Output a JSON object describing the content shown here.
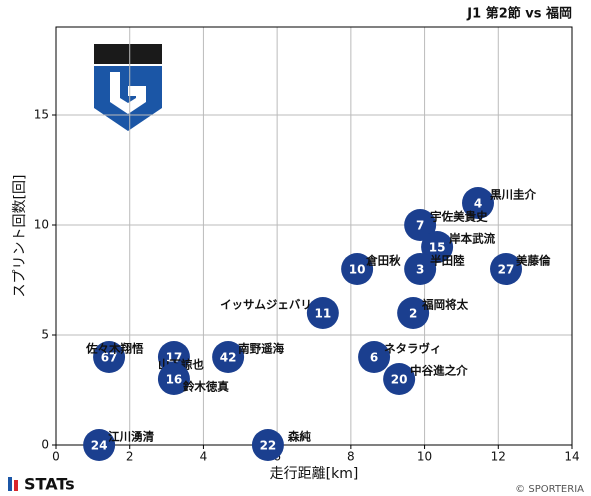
{
  "chart_data": {
    "type": "scatter",
    "title": "J1 第2節 vs 福岡",
    "xlabel": "走行距離[km]",
    "ylabel": "スプリント回数[回]",
    "color": "#1b3f8f",
    "x": [
      11.45,
      9.88,
      10.34,
      8.17,
      9.88,
      12.21,
      7.24,
      9.69,
      1.44,
      3.2,
      4.67,
      8.63,
      3.2,
      9.31,
      1.17,
      5.75
    ],
    "values": [
      11,
      10,
      9,
      8,
      8,
      8,
      6,
      6,
      4,
      4,
      4,
      4,
      3,
      3,
      0,
      0
    ],
    "point_labels": [
      "4",
      "7",
      "15",
      "10",
      "3",
      "27",
      "11",
      "2",
      "67",
      "17",
      "42",
      "6",
      "16",
      "20",
      "24",
      "22"
    ],
    "names": [
      "黒川圭介",
      "宇佐美貴史",
      "岸本武流",
      "倉田秋",
      "半田陸",
      "美藤倫",
      "イッサムジェバリ",
      "福岡将太",
      "佐々木翔悟",
      "山下諒也",
      "南野遥海",
      "ネタラヴィ",
      "鈴木徳真",
      "中谷進之介",
      "江川湧清",
      "森純"
    ],
    "xlim": [
      0,
      14
    ],
    "xticks": [
      0,
      2,
      4,
      6,
      8,
      10,
      12,
      14
    ],
    "ylim": [
      0,
      19
    ],
    "yticks": [
      0,
      5,
      10,
      15
    ],
    "grid": true
  },
  "footer": {
    "brand": "STATs",
    "copyright": "© SPORTERIA"
  }
}
